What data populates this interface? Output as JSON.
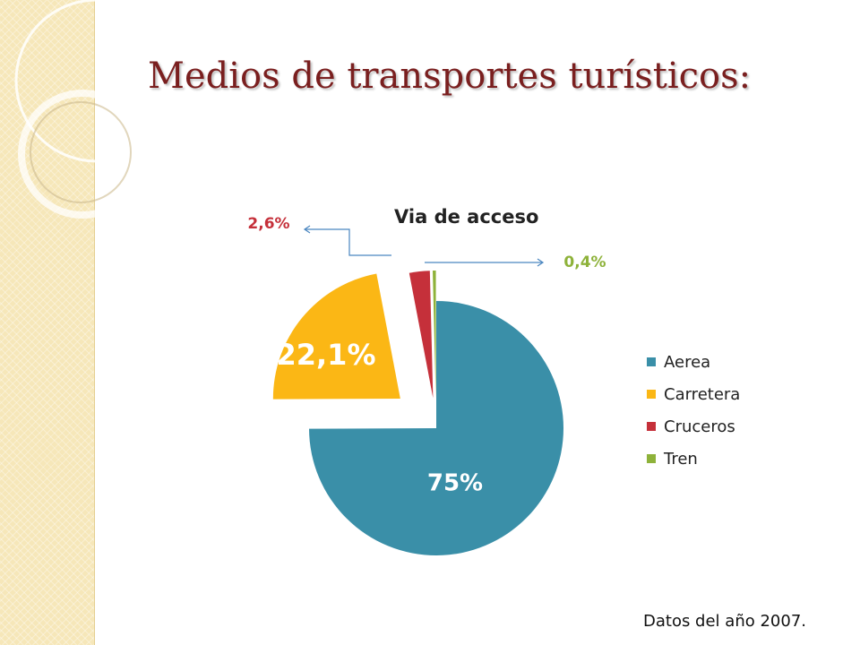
{
  "slide": {
    "title": "Medios de transportes turísticos:",
    "footnote": "Datos del año 2007."
  },
  "theme": {
    "strip_color": "#f6e7b9",
    "title_color": "#7a1f1f"
  },
  "chart_data": {
    "type": "pie",
    "title": "Via de acceso",
    "legend_position": "right",
    "exploded": true,
    "categories": [
      "Aerea",
      "Carretera",
      "Cruceros",
      "Tren"
    ],
    "values": [
      75,
      22.1,
      2.6,
      0.4
    ],
    "data_labels": [
      "75%",
      "22,1%",
      "2,6%",
      "0,4%"
    ],
    "colors": [
      "#3a8fa8",
      "#fbb715",
      "#c5303a",
      "#8eb23a"
    ],
    "label_colors": [
      "#ffffff",
      "#ffffff",
      "#c5303a",
      "#8eb23a"
    ]
  }
}
